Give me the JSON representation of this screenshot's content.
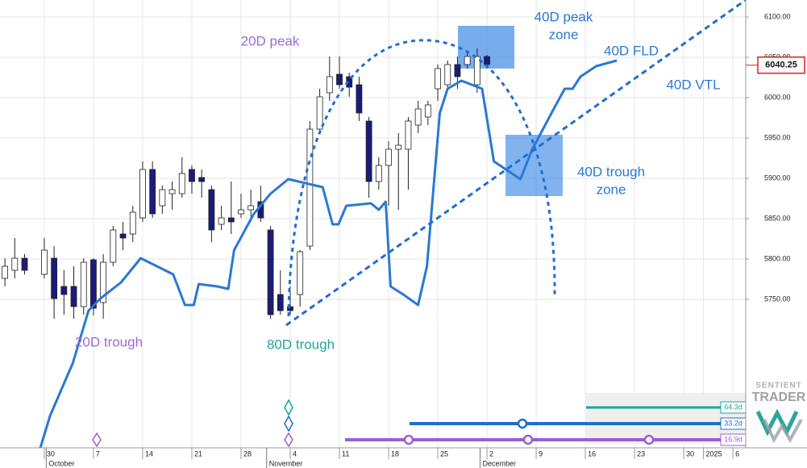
{
  "chart_data": {
    "type": "candlestick",
    "ylim": [
      5566,
      6121
    ],
    "yticks": [
      {
        "value": 5750,
        "label": "5750.00"
      },
      {
        "value": 5800,
        "label": "5800.00"
      },
      {
        "value": 5850,
        "label": "5850.00"
      },
      {
        "value": 5900,
        "label": "5900.00"
      },
      {
        "value": 5950,
        "label": "5950.00"
      },
      {
        "value": 6000,
        "label": "6000.00"
      },
      {
        "value": 6050,
        "label": "6050.00"
      },
      {
        "value": 6100,
        "label": "6100.00"
      }
    ],
    "xlim": [
      -4.5,
      71.3
    ],
    "xticks": [
      {
        "value": 0,
        "label": "30"
      },
      {
        "value": 5,
        "label": "7"
      },
      {
        "value": 10,
        "label": "14"
      },
      {
        "value": 15,
        "label": "21"
      },
      {
        "value": 20,
        "label": "28"
      },
      {
        "value": 25,
        "label": "4"
      },
      {
        "value": 30,
        "label": "11"
      },
      {
        "value": 35,
        "label": "18"
      },
      {
        "value": 40,
        "label": "25"
      },
      {
        "value": 45,
        "label": "2"
      },
      {
        "value": 50,
        "label": "9"
      },
      {
        "value": 55,
        "label": "16"
      },
      {
        "value": 60,
        "label": "23"
      },
      {
        "value": 65,
        "label": "30"
      },
      {
        "value": 67,
        "label": "2025"
      },
      {
        "value": 70,
        "label": "6"
      }
    ],
    "month_labels": [
      {
        "value": 0.2,
        "label": "October"
      },
      {
        "value": 22.6,
        "label": "November"
      },
      {
        "value": 44.3,
        "label": "December"
      }
    ],
    "grid": true,
    "candles": {
      "up_color": "#ffffff",
      "down_color": "#1b1b7a",
      "x": [
        -4,
        -3,
        -2,
        0,
        1,
        2,
        3,
        4,
        5,
        6,
        7,
        8,
        9,
        10,
        11,
        12,
        13,
        14,
        15,
        16,
        17,
        18,
        19,
        20,
        21,
        22,
        23,
        24,
        25,
        26,
        27,
        28,
        29,
        30,
        31,
        32,
        33,
        34,
        35,
        36,
        37,
        38,
        39,
        40,
        41,
        42,
        43,
        44,
        45
      ],
      "open": [
        5776,
        5786,
        5801,
        5781,
        5801,
        5766,
        5766,
        5741,
        5799,
        5746,
        5796,
        5831,
        5831,
        5851,
        5911,
        5866,
        5881,
        5881,
        5911,
        5901,
        5886,
        5843,
        5851,
        5856,
        5861,
        5871,
        5836,
        5756,
        5741,
        5756,
        5816,
        5961,
        6006,
        6029,
        6026,
        6016,
        5971,
        5896,
        5916,
        5936,
        5936,
        5966,
        5976,
        6011,
        6016,
        6041,
        6041,
        6016,
        6051
      ],
      "high": [
        5801,
        5826,
        5806,
        5826,
        5816,
        5786,
        5791,
        5801,
        5801,
        5806,
        5841,
        5846,
        5866,
        5921,
        5921,
        5891,
        5896,
        5926,
        5916,
        5911,
        5891,
        5866,
        5896,
        5881,
        5886,
        5891,
        5841,
        5786,
        5766,
        5811,
        5971,
        6011,
        6051,
        6051,
        6031,
        6026,
        5976,
        5926,
        5946,
        5956,
        5976,
        5996,
        5996,
        6041,
        6046,
        6051,
        6056,
        6061,
        6053
      ],
      "low": [
        5766,
        5776,
        5781,
        5776,
        5726,
        5731,
        5726,
        5731,
        5730,
        5726,
        5791,
        5811,
        5821,
        5846,
        5851,
        5856,
        5861,
        5876,
        5881,
        5876,
        5821,
        5836,
        5831,
        5851,
        5846,
        5846,
        5726,
        5731,
        5731,
        5741,
        5811,
        5956,
        5996,
        6011,
        6001,
        5971,
        5876,
        5886,
        5866,
        5861,
        5886,
        5956,
        5966,
        5996,
        6011,
        6011,
        6036,
        6006,
        6036
      ],
      "close": [
        5791,
        5801,
        5786,
        5811,
        5751,
        5756,
        5741,
        5796,
        5739,
        5796,
        5836,
        5826,
        5858,
        5911,
        5856,
        5886,
        5886,
        5906,
        5896,
        5896,
        5836,
        5851,
        5846,
        5861,
        5866,
        5851,
        5731,
        5736,
        5736,
        5809,
        5961,
        6001,
        6026,
        6016,
        6013,
        5981,
        5896,
        5916,
        5936,
        5941,
        5971,
        5986,
        5991,
        6036,
        6041,
        6026,
        6051,
        6051,
        6041
      ]
    },
    "series": [
      {
        "name": "40D FLD",
        "color": "#2a78d4",
        "x": [
          -0.4,
          0.6,
          2.9,
          4.5,
          5.7,
          7.8,
          9.8,
          13.1,
          14.3,
          15.2,
          15.7,
          17.6,
          18.7,
          19.3,
          21.3,
          23.0,
          24.8,
          28.3,
          29.3,
          29.9,
          30.7,
          33.2,
          34.0,
          34.7,
          35.2,
          36.5,
          38.0,
          38.9,
          40.2,
          41.0,
          42.4,
          44.5,
          45.7,
          48.4,
          49.6,
          52.0,
          52.9,
          53.7,
          54.5,
          56.1,
          58.2
        ],
        "values": [
          5566,
          5606,
          5671,
          5736,
          5751,
          5771,
          5801,
          5781,
          5743,
          5743,
          5769,
          5766,
          5763,
          5811,
          5856,
          5881,
          5899,
          5889,
          5843,
          5843,
          5866,
          5869,
          5861,
          5871,
          5766,
          5756,
          5743,
          5791,
          5981,
          6011,
          6021,
          6011,
          5921,
          5899,
          5936,
          5991,
          6011,
          6011,
          6026,
          6039,
          6046
        ]
      }
    ],
    "last_price": 6040.25,
    "annotations": [
      {
        "lines": [
          "20D peak"
        ],
        "color": "#9a6bd8"
      },
      {
        "lines": [
          "40D peak",
          "zone"
        ],
        "color": "#2a78d4"
      },
      {
        "lines": [
          "40D FLD"
        ],
        "color": "#2a78d4"
      },
      {
        "lines": [
          "40D VTL"
        ],
        "color": "#2a78d4"
      },
      {
        "lines": [
          "40D trough",
          "zone"
        ],
        "color": "#2a78d4"
      },
      {
        "lines": [
          "20D trough"
        ],
        "color": "#9a6bd8"
      },
      {
        "lines": [
          "80D trough"
        ],
        "color": "#22a59c"
      }
    ],
    "cycles": [
      {
        "label": "64.3d",
        "color": "#1aa59a"
      },
      {
        "label": "33.2d",
        "color": "#1f6fc8"
      },
      {
        "label": "16.9d",
        "color": "#9a5fd0"
      }
    ],
    "logo": [
      "SENTIENT",
      "TRADER"
    ]
  }
}
